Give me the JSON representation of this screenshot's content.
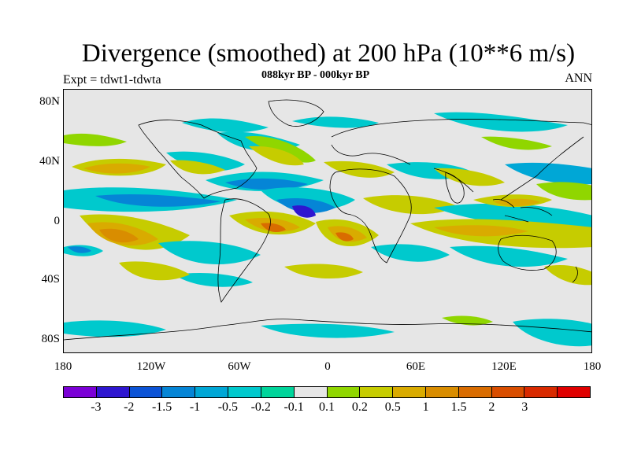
{
  "title": "Divergence (smoothed) at 200 hPa (10**6 m/s)",
  "subtitle": "088kyr BP - 000kyr BP",
  "left_title": "Expt = tdwt1-tdwta",
  "right_title": "ANN",
  "y_ticks": [
    "80N",
    "40N",
    "0",
    "40S",
    "80S"
  ],
  "x_ticks": [
    "180",
    "120W",
    "60W",
    "0",
    "60E",
    "120E",
    "180"
  ],
  "colorbar": {
    "colors": [
      "#7b00d6",
      "#2e16d0",
      "#0b53d6",
      "#0585d6",
      "#00a7d6",
      "#00c9cd",
      "#00d59b",
      "#e6e6e6",
      "#90d600",
      "#c6cc00",
      "#d9ab00",
      "#d98d00",
      "#d96c00",
      "#d94e00",
      "#d92a00",
      "#e00000"
    ],
    "labels": [
      "-3",
      "-2",
      "-1.5",
      "-1",
      "-0.5",
      "-0.2",
      "-0.1",
      "0.1",
      "0.2",
      "0.5",
      "1",
      "1.5",
      "2",
      "3"
    ]
  },
  "map_colors": {
    "background": "#e6e6e6",
    "teal": "#00c9cd",
    "green": "#00d59b",
    "lightblue": "#00a7d6",
    "blue": "#0585d6",
    "deepblue": "#2e16d0",
    "lime": "#90d600",
    "yellow": "#c6cc00",
    "gold": "#d9ab00",
    "orange": "#d98d00",
    "darkorange": "#d96c00"
  }
}
